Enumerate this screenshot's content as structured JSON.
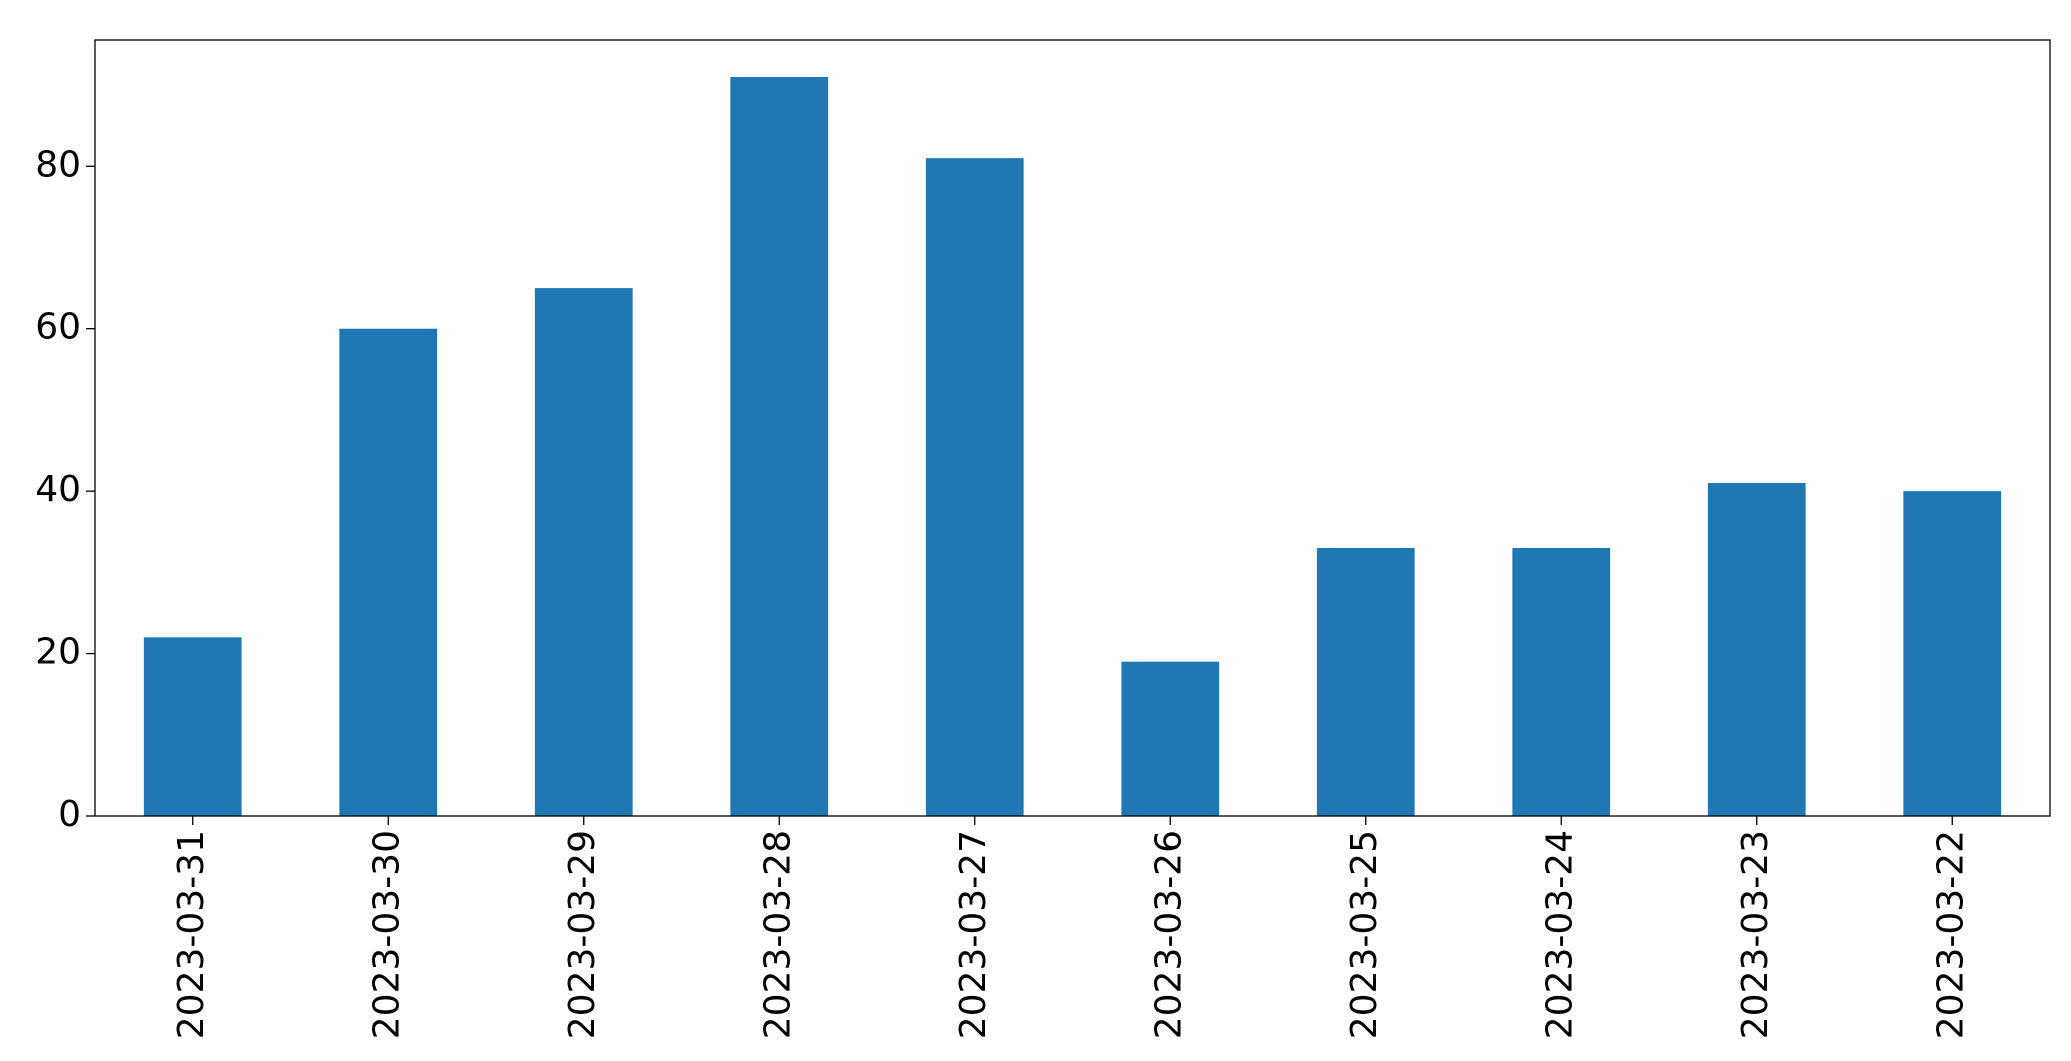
{
  "chart_data": {
    "type": "bar",
    "categories": [
      "2023-03-31",
      "2023-03-30",
      "2023-03-29",
      "2023-03-28",
      "2023-03-27",
      "2023-03-26",
      "2023-03-25",
      "2023-03-24",
      "2023-03-23",
      "2023-03-22"
    ],
    "values": [
      22,
      60,
      65,
      91,
      81,
      19,
      33,
      33,
      41,
      40
    ],
    "color": "#1f77b4",
    "ylim": [
      0,
      95.55
    ],
    "yticks": [
      0,
      20,
      40,
      60,
      80
    ],
    "grid": false
  }
}
